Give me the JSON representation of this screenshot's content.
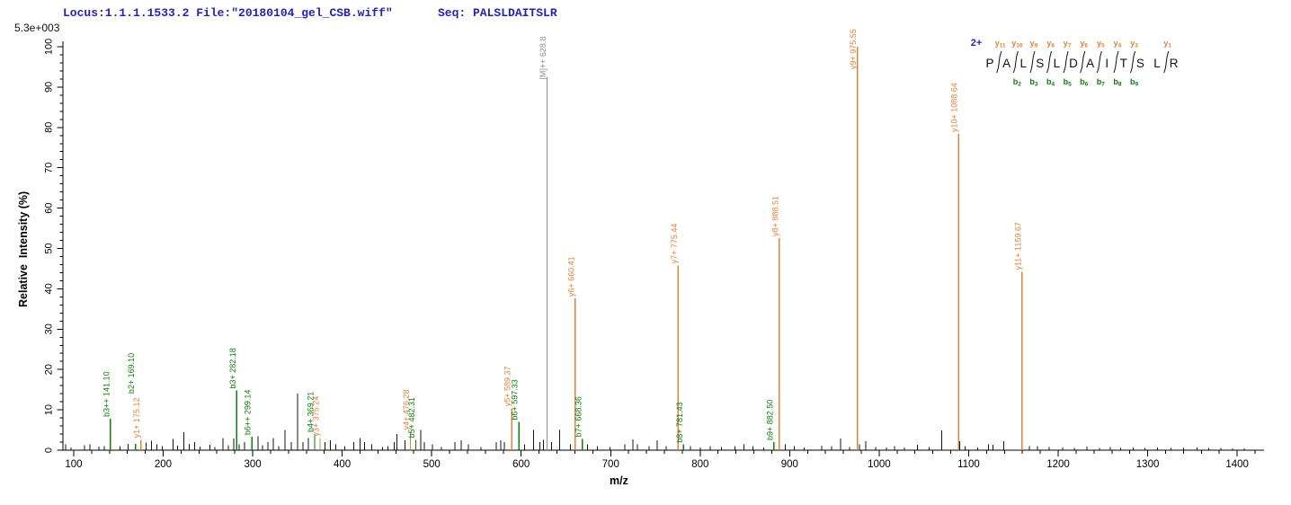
{
  "header": {
    "locus_file": "Locus:1.1.1.1533.2 File:\"20180104_gel_CSB.wiff\"",
    "seq": "Seq: PALSLDAITSLR",
    "max_intensity": "5.3e+003"
  },
  "colors": {
    "y_ion": "#e0823c",
    "b_ion": "#0e7c0e",
    "precursor": "#8f8f8f",
    "noise": "#141414",
    "axis": "#000000",
    "header_blue": "#2424ad",
    "charge_blue": "#2222cc",
    "residue": "#111111",
    "background": "#ffffff"
  },
  "chart_data": {
    "type": "bar",
    "title": "",
    "xlabel": "m/z",
    "ylabel": "Relative  Intensity (%)",
    "max_intensity_annotation": "5.3e+003",
    "xlim": [
      88,
      1430
    ],
    "ylim": [
      0,
      100
    ],
    "x_major_tick_step": 100,
    "x_minor_tick_step": 20,
    "y_major_tick_step": 10,
    "y_minor_tick_step": 2,
    "x_major_ticks": [
      100,
      200,
      300,
      400,
      500,
      600,
      700,
      800,
      900,
      1000,
      1100,
      1200,
      1300,
      1400
    ],
    "y_major_ticks": [
      0,
      10,
      20,
      30,
      40,
      50,
      60,
      70,
      80,
      90,
      100
    ],
    "labeled_peaks": [
      {
        "mz": 141.1,
        "pct": 7.8,
        "label": "b3++ 141.10",
        "ion": "b"
      },
      {
        "mz": 169.1,
        "pct": 1.6,
        "label": "b2+ 169.10",
        "ion": "b",
        "label_bottom_pct": 14
      },
      {
        "mz": 175.12,
        "pct": 2.6,
        "label": "y1+ 175.12",
        "ion": "y"
      },
      {
        "mz": 282.18,
        "pct": 14.8,
        "label": "b3+ 282.18",
        "ion": "b"
      },
      {
        "mz": 299.14,
        "pct": 3.3,
        "label": "b6++ 299.14",
        "ion": "b"
      },
      {
        "mz": 369.21,
        "pct": 4.0,
        "label": "b4+ 369.21",
        "ion": "b"
      },
      {
        "mz": 375.24,
        "pct": 3.0,
        "label": "y3+ 375.24",
        "ion": "y"
      },
      {
        "mz": 476.28,
        "pct": 4.6,
        "label": "y4+ 476.28",
        "ion": "y"
      },
      {
        "mz": 482.31,
        "pct": 2.6,
        "label": "b5+ 482.31",
        "ion": "b"
      },
      {
        "mz": 589.37,
        "pct": 10.4,
        "label": "y5+ 589.37",
        "ion": "y"
      },
      {
        "mz": 597.33,
        "pct": 7.0,
        "label": "b6+ 597.33",
        "ion": "b"
      },
      {
        "mz": 628.8,
        "pct": 92.5,
        "label": "[M]++ 628.8",
        "ion": "M",
        "label_drop": 3
      },
      {
        "mz": 660.41,
        "pct": 37.6,
        "label": "y6+ 660.41",
        "ion": "y"
      },
      {
        "mz": 668.36,
        "pct": 2.8,
        "label": "b7+ 668.36",
        "ion": "b"
      },
      {
        "mz": 775.44,
        "pct": 45.8,
        "label": "y7+ 775.44",
        "ion": "y"
      },
      {
        "mz": 781.43,
        "pct": 1.4,
        "label": "b8+ 781.43",
        "ion": "b"
      },
      {
        "mz": 882.5,
        "pct": 2.0,
        "label": "b9+ 882.50",
        "ion": "b"
      },
      {
        "mz": 888.51,
        "pct": 52.6,
        "label": "y8+ 888.51",
        "ion": "y"
      },
      {
        "mz": 975.55,
        "pct": 100,
        "label": "y9+ 975.55",
        "ion": "y",
        "label_drop": 25
      },
      {
        "mz": 1088.64,
        "pct": 78.4,
        "label": "y10+ 1088.64",
        "ion": "y"
      },
      {
        "mz": 1159.67,
        "pct": 44.2,
        "label": "y11+ 1159.67",
        "ion": "y"
      }
    ],
    "noise_peaks": [
      [
        91,
        1.4
      ],
      [
        97,
        0.7
      ],
      [
        112,
        1.2
      ],
      [
        118,
        1.5
      ],
      [
        128,
        0.9
      ],
      [
        134,
        1.0
      ],
      [
        152,
        1.0
      ],
      [
        161,
        1.6
      ],
      [
        181,
        1.9
      ],
      [
        187,
        2.3
      ],
      [
        193,
        1.4
      ],
      [
        199,
        1.0
      ],
      [
        211,
        2.8
      ],
      [
        216,
        1.1
      ],
      [
        223,
        4.4
      ],
      [
        229,
        1.6
      ],
      [
        235,
        2.0
      ],
      [
        241,
        0.9
      ],
      [
        252,
        1.3
      ],
      [
        258,
        0.8
      ],
      [
        267,
        3.0
      ],
      [
        273,
        1.2
      ],
      [
        279,
        2.9
      ],
      [
        285,
        1.5
      ],
      [
        291,
        2.0
      ],
      [
        306,
        3.4
      ],
      [
        311,
        1.2
      ],
      [
        317,
        2.0
      ],
      [
        323,
        3.0
      ],
      [
        329,
        1.0
      ],
      [
        336,
        5.0
      ],
      [
        343,
        2.0
      ],
      [
        350,
        14.0
      ],
      [
        356,
        2.0
      ],
      [
        362,
        3.0
      ],
      [
        381,
        2.0
      ],
      [
        387,
        2.4
      ],
      [
        393,
        1.4
      ],
      [
        403,
        1.0
      ],
      [
        413,
        2.0
      ],
      [
        420,
        3.0
      ],
      [
        425,
        2.0
      ],
      [
        433,
        1.5
      ],
      [
        445,
        0.8
      ],
      [
        451,
        1.0
      ],
      [
        458,
        2.0
      ],
      [
        461,
        4.0
      ],
      [
        470,
        2.5
      ],
      [
        488,
        5.0
      ],
      [
        492,
        2.0
      ],
      [
        501,
        1.5
      ],
      [
        511,
        0.8
      ],
      [
        526,
        2.0
      ],
      [
        533,
        2.5
      ],
      [
        541,
        1.5
      ],
      [
        555,
        0.8
      ],
      [
        572,
        2.0
      ],
      [
        577,
        2.5
      ],
      [
        581,
        2.0
      ],
      [
        604,
        1.5
      ],
      [
        614,
        5.0
      ],
      [
        621,
        2.0
      ],
      [
        625,
        2.6
      ],
      [
        634,
        2.0
      ],
      [
        643,
        5.0
      ],
      [
        655,
        1.5
      ],
      [
        674,
        1.5
      ],
      [
        685,
        1.0
      ],
      [
        699,
        0.8
      ],
      [
        716,
        1.5
      ],
      [
        725,
        2.7
      ],
      [
        730,
        1.5
      ],
      [
        743,
        1.0
      ],
      [
        752,
        2.5
      ],
      [
        762,
        1.0
      ],
      [
        789,
        1.0
      ],
      [
        800,
        0.7
      ],
      [
        811,
        1.0
      ],
      [
        824,
        0.8
      ],
      [
        839,
        1.0
      ],
      [
        849,
        1.5
      ],
      [
        859,
        1.0
      ],
      [
        871,
        0.7
      ],
      [
        895,
        1.5
      ],
      [
        905,
        1.0
      ],
      [
        916,
        0.7
      ],
      [
        936,
        1.1
      ],
      [
        947,
        1.0
      ],
      [
        957,
        2.9
      ],
      [
        967,
        0.8
      ],
      [
        978,
        1.5
      ],
      [
        985,
        2.2
      ],
      [
        996,
        0.8
      ],
      [
        1008,
        0.7
      ],
      [
        1017,
        1.0
      ],
      [
        1028,
        0.7
      ],
      [
        1043,
        1.3
      ],
      [
        1056,
        0.8
      ],
      [
        1070,
        4.9
      ],
      [
        1090,
        2.2
      ],
      [
        1096,
        1.0
      ],
      [
        1110,
        0.7
      ],
      [
        1122,
        1.5
      ],
      [
        1127,
        1.3
      ],
      [
        1139,
        2.2
      ],
      [
        1160,
        1.8
      ],
      [
        1168,
        1.0
      ],
      [
        1177,
        1.0
      ],
      [
        1190,
        0.8
      ],
      [
        1205,
        0.7
      ],
      [
        1218,
        0.6
      ],
      [
        1232,
        0.9
      ],
      [
        1246,
        0.6
      ],
      [
        1258,
        0.8
      ],
      [
        1270,
        0.6
      ],
      [
        1284,
        0.7
      ],
      [
        1297,
        0.6
      ],
      [
        1311,
        0.7
      ],
      [
        1326,
        0.6
      ],
      [
        1340,
        0.6
      ],
      [
        1355,
        0.7
      ],
      [
        1368,
        0.6
      ],
      [
        1382,
        0.6
      ],
      [
        1395,
        0.5
      ],
      [
        1408,
        0.5
      ]
    ]
  },
  "sequence_panel": {
    "charge_label": "2+",
    "residues": [
      "P",
      "A",
      "L",
      "S",
      "L",
      "D",
      "A",
      "I",
      "T",
      "S",
      "L",
      "R"
    ],
    "cleavages": [
      {
        "after_index": 0,
        "y_ion": "y11",
        "b_ion": ""
      },
      {
        "after_index": 1,
        "y_ion": "y10",
        "b_ion": "b2"
      },
      {
        "after_index": 2,
        "y_ion": "y9",
        "b_ion": "b3"
      },
      {
        "after_index": 3,
        "y_ion": "y8",
        "b_ion": "b4"
      },
      {
        "after_index": 4,
        "y_ion": "y7",
        "b_ion": "b5"
      },
      {
        "after_index": 5,
        "y_ion": "y6",
        "b_ion": "b6"
      },
      {
        "after_index": 6,
        "y_ion": "y5",
        "b_ion": "b7"
      },
      {
        "after_index": 7,
        "y_ion": "y4",
        "b_ion": "b8"
      },
      {
        "after_index": 8,
        "y_ion": "y3",
        "b_ion": "b9"
      },
      {
        "after_index": 10,
        "y_ion": "y1",
        "b_ion": ""
      }
    ]
  }
}
